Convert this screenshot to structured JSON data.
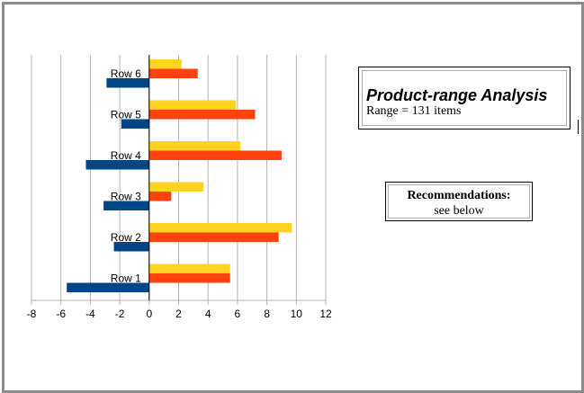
{
  "chart_data": {
    "type": "bar",
    "orientation": "horizontal",
    "categories": [
      "Row 1",
      "Row 2",
      "Row 3",
      "Row 4",
      "Row 5",
      "Row 6"
    ],
    "series": [
      {
        "values": [
          -5.6,
          -2.4,
          -3.1,
          -4.3,
          -1.9,
          -2.9
        ]
      },
      {
        "values": [
          5.5,
          8.8,
          1.5,
          9.0,
          7.2,
          3.3
        ]
      },
      {
        "values": [
          5.5,
          9.7,
          3.7,
          6.2,
          5.9,
          2.2
        ]
      }
    ],
    "xlim": [
      -8,
      12
    ],
    "xticks": [
      -8,
      -6,
      -4,
      -2,
      0,
      2,
      4,
      6,
      8,
      10,
      12
    ],
    "grid": true,
    "legend": "none"
  },
  "colors": {
    "series": [
      "#004586",
      "#ff420e",
      "#ffd320"
    ],
    "grid": "#b3b3b3",
    "frame": "#8c8c8c"
  },
  "title_box": {
    "title": "Product-range Analysis",
    "subtitle": "Range = 131 items"
  },
  "recommendations": {
    "title": "Recommendations:",
    "text": "see below"
  }
}
